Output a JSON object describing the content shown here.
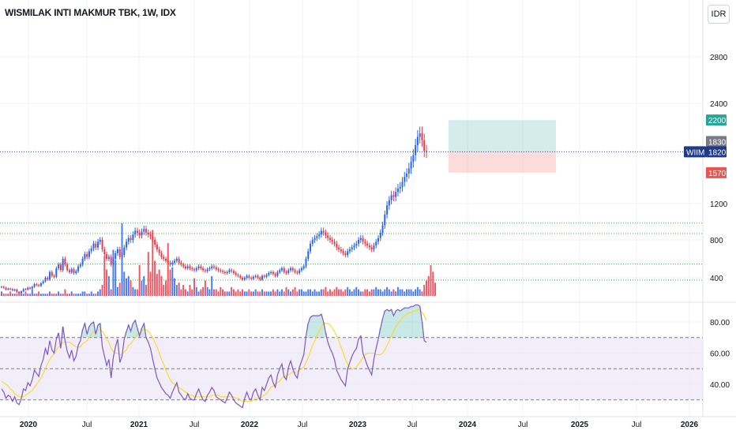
{
  "title": "WISMILAK INTI MAKMUR TBK, 1W, IDX",
  "currency_button": "IDR",
  "colors": {
    "up": "#2962ff",
    "down": "#f23645",
    "grid": "#f0f3fa",
    "rsi_line": "#7e57c2",
    "rsi_ma": "#fdd835",
    "rsi_band": "#ede7f6",
    "target": "#26a69a",
    "stop": "#ef5350",
    "support": "#4caf50",
    "last_price": "#1e3a8a"
  },
  "chart_data": [
    {
      "type": "candlestick",
      "symbol": "WIIM",
      "interval": "1W",
      "exchange": "IDX",
      "x_ticks": [
        "2020",
        "Jul",
        "2021",
        "Jul",
        "2022",
        "Jul",
        "2023",
        "Jul",
        "2024",
        "Jul",
        "2025",
        "Jul",
        "2026"
      ],
      "y_ticks": [
        400,
        800,
        1200,
        2400,
        2800
      ],
      "ylim": [
        200,
        3200
      ],
      "price_labels": {
        "last": "1820",
        "symbol": "WIIM",
        "high": "1830",
        "target": "2200",
        "stop": "1570"
      },
      "support_levels": [
        985,
        870,
        545,
        375
      ],
      "position": {
        "type": "long",
        "entry": 1820,
        "target": 2200,
        "stop": 1570
      },
      "series": [
        {
          "name": "price",
          "close": [
            300,
            290,
            270,
            280,
            275,
            260,
            270,
            240,
            230,
            250,
            275,
            270,
            290,
            280,
            300,
            330,
            320,
            310,
            340,
            360,
            400,
            380,
            460,
            420,
            410,
            500,
            540,
            480,
            600,
            540,
            480,
            460,
            490,
            450,
            470,
            520,
            540,
            600,
            650,
            620,
            680,
            710,
            760,
            720,
            780,
            800,
            700,
            650,
            600,
            620,
            540,
            600,
            660,
            700,
            620,
            640,
            720,
            780,
            820,
            800,
            860,
            900,
            880,
            850,
            890,
            920,
            880,
            860,
            840,
            800,
            750,
            700,
            660,
            620,
            600,
            580,
            560,
            540,
            560,
            580,
            600,
            560,
            540,
            520,
            500,
            520,
            500,
            490,
            480,
            500,
            520,
            500,
            480,
            470,
            490,
            500,
            520,
            510,
            490,
            480,
            470,
            460,
            450,
            460,
            480,
            470,
            450,
            430,
            420,
            400,
            380,
            400,
            420,
            400,
            390,
            410,
            420,
            400,
            380,
            420,
            410,
            430,
            450,
            460,
            440,
            420,
            460,
            480,
            500,
            460,
            450,
            480,
            500,
            480,
            460,
            450,
            480,
            500,
            520,
            600,
            680,
            760,
            800,
            820,
            840,
            860,
            900,
            880,
            850,
            820,
            800,
            780,
            760,
            720,
            700,
            680,
            660,
            640,
            680,
            700,
            720,
            740,
            760,
            800,
            820,
            780,
            760,
            740,
            720,
            700,
            740,
            780,
            820,
            880,
            960,
            1080,
            1180,
            1240,
            1300,
            1280,
            1340,
            1380,
            1400,
            1460,
            1520,
            1560,
            1620,
            1700,
            1780,
            1900,
            2000,
            2040,
            1960,
            1830,
            1820
          ]
        },
        {
          "name": "volume",
          "values": [
            0.2,
            0.1,
            0.1,
            0.1,
            0.2,
            0.1,
            0.1,
            0.1,
            0.2,
            0.1,
            0.1,
            0.2,
            0.1,
            0.1,
            0.3,
            0.1,
            0.1,
            0.2,
            0.1,
            0.1,
            0.1,
            0.1,
            0.2,
            0.1,
            0.1,
            0.1,
            0.2,
            0.1,
            0.1,
            0.3,
            0.1,
            0.1,
            0.2,
            0.1,
            0.1,
            0.1,
            0.1,
            0.2,
            0.2,
            0.1,
            0.1,
            0.2,
            0.1,
            0.1,
            0.2,
            0.3,
            0.5,
            1.8,
            1.2,
            0.9,
            0.3,
            2.1,
            1.6,
            0.4,
            0.6,
            3.3,
            1.1,
            0.8,
            0.9,
            0.7,
            0.4,
            0.3,
            0.3,
            1.4,
            0.7,
            0.9,
            0.5,
            2.0,
            1.1,
            3.0,
            1.6,
            1.0,
            1.2,
            0.9,
            0.5,
            0.7,
            2.4,
            1.2,
            1.3,
            0.8,
            0.5,
            0.6,
            0.3,
            0.5,
            0.3,
            0.2,
            0.5,
            0.3,
            0.8,
            0.4,
            0.2,
            0.3,
            0.4,
            0.7,
            0.4,
            0.3,
            0.9,
            0.3,
            0.3,
            0.2,
            0.4,
            0.3,
            0.2,
            0.2,
            0.2,
            0.4,
            0.3,
            0.2,
            0.3,
            0.2,
            0.3,
            0.2,
            0.2,
            0.3,
            0.2,
            0.2,
            0.3,
            0.2,
            0.2,
            0.3,
            0.2,
            0.2,
            0.2,
            0.2,
            0.3,
            0.2,
            0.3,
            0.2,
            0.3,
            0.2,
            0.4,
            0.3,
            0.2,
            0.3,
            0.4,
            0.2,
            0.3,
            0.3,
            0.2,
            0.2,
            0.3,
            0.3,
            0.2,
            0.3,
            0.2,
            0.2,
            0.3,
            0.3,
            0.4,
            0.2,
            0.3,
            0.2,
            0.3,
            0.4,
            0.3,
            0.3,
            0.2,
            0.3,
            0.4,
            0.3,
            0.2,
            0.3,
            0.4,
            0.3,
            0.2,
            0.2,
            0.3,
            0.3,
            0.2,
            0.3,
            0.3,
            0.4,
            0.3,
            0.3,
            0.2,
            0.3,
            0.4,
            0.3,
            0.2,
            0.3,
            0.2,
            0.4,
            0.3,
            0.3,
            0.2,
            0.3,
            0.3,
            0.3,
            0.2,
            0.3,
            0.4,
            0.3,
            0.2,
            0.5,
            0.7,
            0.9,
            1.4,
            1.1,
            0.6
          ]
        }
      ]
    },
    {
      "type": "line",
      "name": "RSI",
      "y_ticks": [
        "80.00",
        "60.00",
        "40.00"
      ],
      "ylim": [
        25,
        92
      ],
      "bands": [
        30,
        50,
        70
      ],
      "series": [
        {
          "name": "RSI",
          "values": [
            37,
            35,
            31,
            33,
            32,
            29,
            32,
            28,
            27,
            31,
            37,
            36,
            41,
            39,
            43,
            49,
            47,
            45,
            52,
            56,
            63,
            59,
            68,
            62,
            60,
            69,
            73,
            63,
            77,
            68,
            61,
            57,
            62,
            55,
            58,
            65,
            68,
            75,
            79,
            72,
            77,
            79,
            80,
            72,
            78,
            79,
            64,
            58,
            52,
            56,
            44,
            57,
            64,
            69,
            54,
            58,
            69,
            74,
            78,
            74,
            79,
            81,
            76,
            71,
            76,
            79,
            70,
            67,
            63,
            56,
            50,
            44,
            41,
            38,
            36,
            34,
            33,
            31,
            35,
            38,
            41,
            35,
            33,
            31,
            30,
            34,
            31,
            30,
            30,
            34,
            37,
            33,
            30,
            29,
            33,
            35,
            38,
            36,
            32,
            31,
            30,
            29,
            28,
            31,
            35,
            33,
            30,
            28,
            27,
            26,
            25,
            31,
            35,
            31,
            30,
            35,
            37,
            33,
            30,
            38,
            36,
            40,
            44,
            46,
            41,
            38,
            46,
            50,
            53,
            45,
            43,
            51,
            55,
            50,
            46,
            44,
            51,
            55,
            59,
            71,
            79,
            83,
            84,
            84,
            84,
            84,
            85,
            80,
            73,
            67,
            63,
            60,
            56,
            49,
            46,
            43,
            41,
            39,
            50,
            54,
            58,
            61,
            63,
            69,
            71,
            60,
            56,
            52,
            49,
            46,
            56,
            63,
            69,
            76,
            82,
            87,
            88,
            87,
            88,
            84,
            87,
            88,
            87,
            88,
            89,
            89,
            89,
            90,
            90,
            91,
            91,
            90,
            80,
            68,
            67
          ]
        },
        {
          "name": "RSI-based MA",
          "values": [
            42,
            41,
            40,
            39,
            37,
            36,
            34,
            33,
            32,
            32,
            32,
            33,
            34,
            35,
            36,
            38,
            40,
            42,
            44,
            47,
            50,
            53,
            56,
            58,
            60,
            62,
            64,
            65,
            67,
            67,
            67,
            67,
            66,
            65,
            64,
            64,
            64,
            66,
            67,
            68,
            70,
            72,
            74,
            74,
            75,
            75,
            74,
            72,
            69,
            67,
            63,
            61,
            60,
            60,
            59,
            59,
            61,
            62,
            65,
            66,
            68,
            70,
            72,
            73,
            74,
            75,
            75,
            74,
            72,
            70,
            67,
            64,
            60,
            56,
            53,
            49,
            46,
            43,
            41,
            40,
            39,
            38,
            37,
            36,
            35,
            34,
            33,
            33,
            32,
            32,
            32,
            32,
            32,
            32,
            32,
            32,
            33,
            33,
            33,
            33,
            32,
            32,
            32,
            32,
            32,
            32,
            32,
            31,
            31,
            30,
            29,
            29,
            29,
            29,
            29,
            30,
            31,
            31,
            31,
            32,
            33,
            34,
            36,
            38,
            39,
            40,
            41,
            42,
            44,
            45,
            45,
            46,
            47,
            48,
            48,
            48,
            49,
            50,
            51,
            54,
            57,
            61,
            65,
            68,
            71,
            74,
            77,
            79,
            79,
            79,
            78,
            76,
            74,
            71,
            68,
            64,
            60,
            56,
            53,
            51,
            50,
            50,
            51,
            53,
            55,
            57,
            59,
            60,
            60,
            60,
            60,
            59,
            59,
            59,
            60,
            62,
            65,
            68,
            71,
            74,
            77,
            79,
            81,
            83,
            84,
            85,
            86,
            86,
            87,
            87,
            88,
            88,
            86,
            84,
            81
          ]
        }
      ]
    }
  ]
}
